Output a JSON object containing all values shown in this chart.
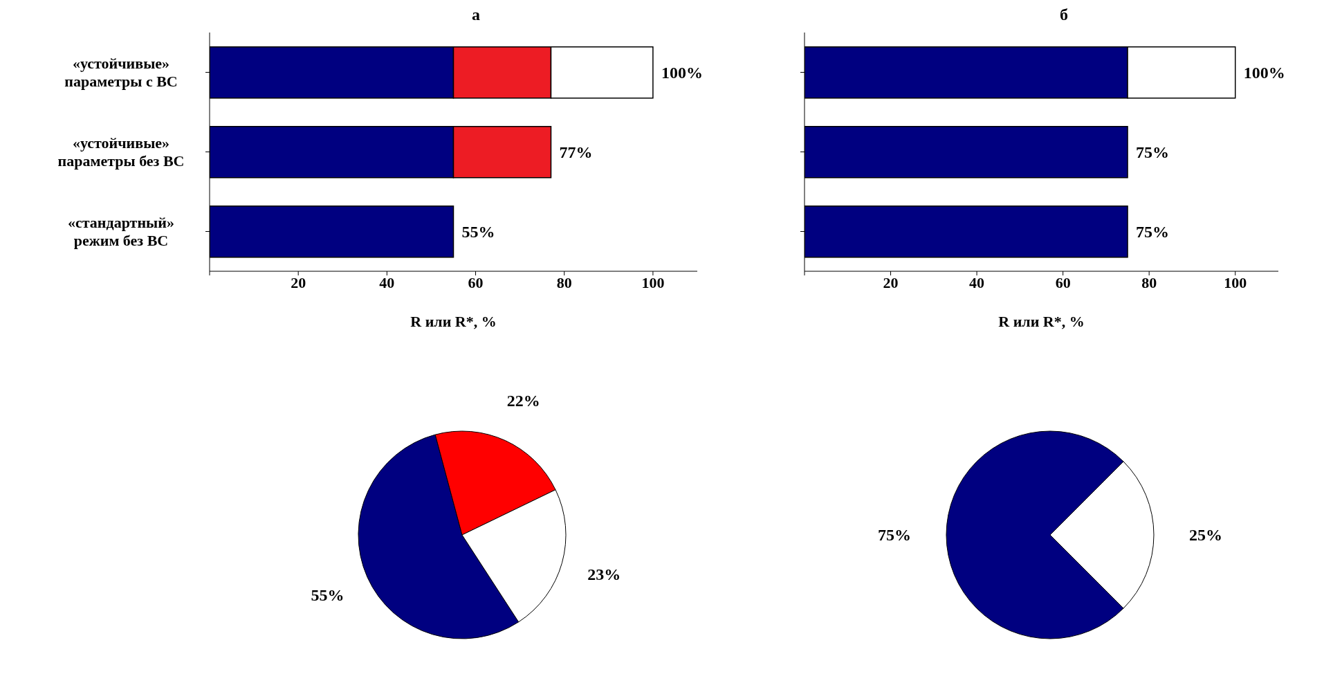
{
  "chart_data": [
    {
      "type": "bar",
      "title": "а",
      "orientation": "horizontal",
      "stacked": true,
      "legend": false,
      "grid": false,
      "xlabel": "R или R*, %",
      "categories": [
        "«устойчивые» параметры с ВС",
        "«устойчивые» параметры без ВС",
        "«стандартный» режим без ВС"
      ],
      "series": [
        {
          "color": "#000080",
          "values": [
            55,
            55,
            55
          ]
        },
        {
          "color": "#ed1c24",
          "values": [
            22,
            22,
            null
          ]
        },
        {
          "color": "#ffffff",
          "values": [
            23,
            null,
            null
          ]
        }
      ],
      "totals": [
        "100%",
        "77%",
        "55%"
      ],
      "xlim": [
        0,
        110
      ],
      "xticks": [
        {
          "value": 0,
          "label": null
        },
        20,
        40,
        60,
        80,
        100
      ]
    },
    {
      "type": "bar",
      "title": "б",
      "orientation": "horizontal",
      "stacked": true,
      "legend": false,
      "grid": false,
      "xlabel": "R или R*, %",
      "categories": [
        null,
        null,
        null
      ],
      "series": [
        {
          "color": "#000080",
          "values": [
            75,
            75,
            75
          ]
        },
        {
          "color": "#ffffff",
          "values": [
            25,
            null,
            null
          ]
        }
      ],
      "totals": [
        "100%",
        "75%",
        "75%"
      ],
      "xlim": [
        0,
        110
      ],
      "xticks": [
        {
          "value": 0,
          "label": null
        },
        20,
        40,
        60,
        80,
        100
      ]
    },
    {
      "type": "pie",
      "legend": false,
      "categories": [
        null,
        null,
        null
      ],
      "values": [
        55,
        22,
        23
      ],
      "colors": [
        "#000080",
        "#ff0000",
        "#ffffff"
      ],
      "value_labels": [
        "55%",
        "22%",
        "23%"
      ]
    },
    {
      "type": "pie",
      "legend": false,
      "categories": [
        null,
        null
      ],
      "values": [
        75,
        25
      ],
      "colors": [
        "#000080",
        "#ffffff"
      ],
      "value_labels": [
        "75%",
        "25%"
      ]
    }
  ]
}
